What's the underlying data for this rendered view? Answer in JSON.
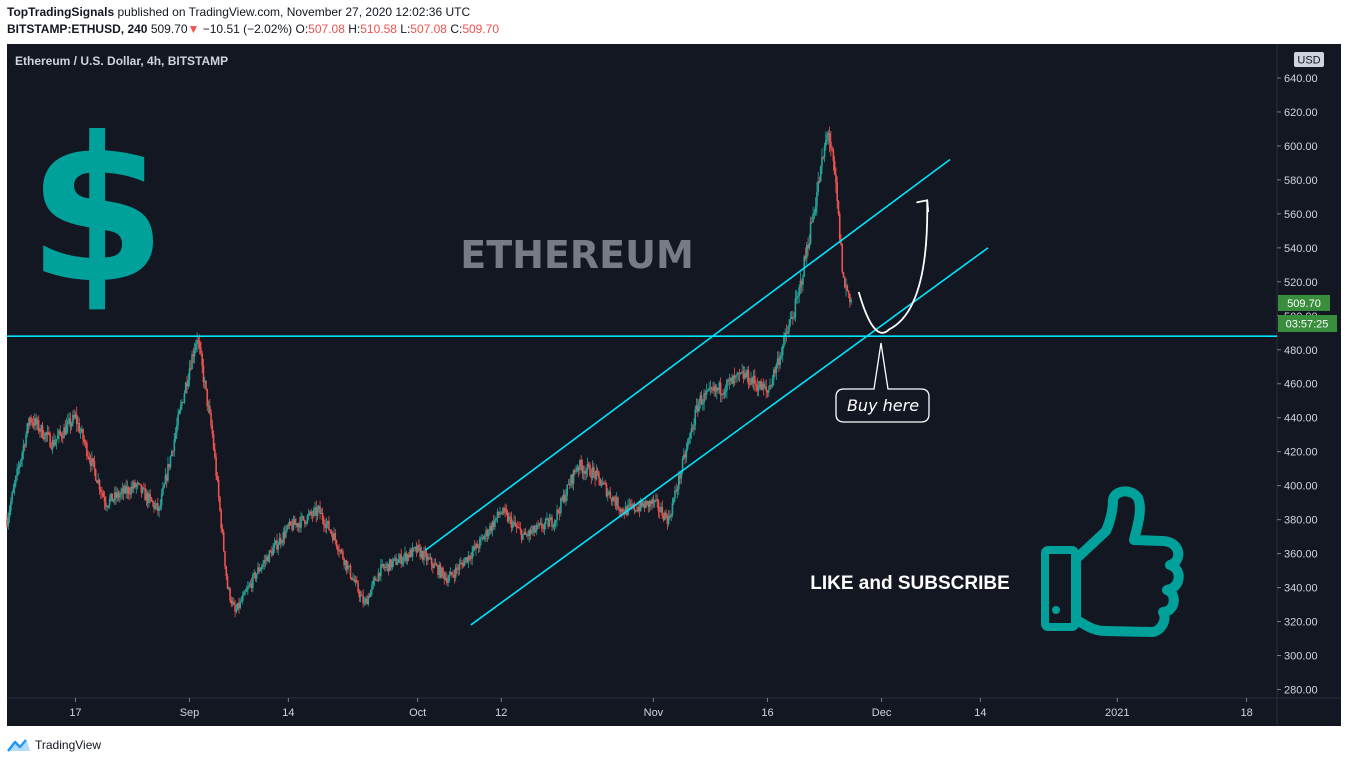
{
  "header": {
    "author": "TopTradingSignals",
    "published_text": "published on TradingView.com, November 27, 2020 12:02:36 UTC",
    "symbol": "BITSTAMP:ETHUSD, 240",
    "last": "509.70",
    "change_arrow": "▼",
    "change": "−10.51 (−2.02%)",
    "o_label": "O:",
    "o_value": "507.08",
    "h_label": "H:",
    "h_value": "510.58",
    "l_label": "L:",
    "l_value": "507.08",
    "c_label": "C:",
    "c_value": "509.70"
  },
  "chart": {
    "pane_title": "Ethereum / U.S. Dollar, 4h, BITSTAMP",
    "currency_badge": "USD",
    "watermark": "ETHEREUM",
    "last_price_label": "509.70",
    "countdown_label": "03:57:25",
    "callout_text": "Buy here",
    "promo_text": "LIKE and SUBSCRIBE",
    "dollar_icon": "dollar-sign-icon",
    "thumb_icon": "thumbs-up-icon",
    "accent_color": "#00a19a",
    "line_color": "#00e5ff",
    "up_color": "#26a69a",
    "down_color": "#ef5350"
  },
  "chart_data": {
    "type": "candlestick",
    "symbol": "BITSTAMP:ETHUSD",
    "interval": "4h",
    "y_ticks": [
      280,
      300,
      320,
      340,
      360,
      380,
      400,
      420,
      440,
      460,
      480,
      500,
      520,
      540,
      560,
      580,
      600,
      620,
      640
    ],
    "y_tick_labels": [
      "280.00",
      "300.00",
      "320.00",
      "340.00",
      "360.00",
      "380.00",
      "400.00",
      "420.00",
      "440.00",
      "460.00",
      "480.00",
      "500.00",
      "520.00",
      "540.00",
      "560.00",
      "580.00",
      "600.00",
      "620.00",
      "640.00"
    ],
    "ylim": [
      275,
      660
    ],
    "x_tick_labels": [
      "17",
      "Sep",
      "14",
      "Oct",
      "12",
      "Nov",
      "16",
      "Dec",
      "14",
      "2021",
      "18"
    ],
    "x_tick_dates": [
      "2020-08-17",
      "2020-09-01",
      "2020-09-14",
      "2020-10-01",
      "2020-10-12",
      "2020-11-01",
      "2020-11-16",
      "2020-12-01",
      "2020-12-14",
      "2021-01-01",
      "2021-01-18"
    ],
    "xlim": [
      "2020-08-08",
      "2021-01-22"
    ],
    "price_path": [
      [
        "2020-08-08",
        380
      ],
      [
        "2020-08-11",
        440
      ],
      [
        "2020-08-14",
        425
      ],
      [
        "2020-08-17",
        440
      ],
      [
        "2020-08-21",
        390
      ],
      [
        "2020-08-25",
        400
      ],
      [
        "2020-08-28",
        385
      ],
      [
        "2020-09-01",
        470
      ],
      [
        "2020-09-02",
        488
      ],
      [
        "2020-09-04",
        430
      ],
      [
        "2020-09-06",
        340
      ],
      [
        "2020-09-07",
        325
      ],
      [
        "2020-09-10",
        350
      ],
      [
        "2020-09-14",
        375
      ],
      [
        "2020-09-18",
        385
      ],
      [
        "2020-09-20",
        370
      ],
      [
        "2020-09-24",
        330
      ],
      [
        "2020-09-26",
        350
      ],
      [
        "2020-09-30",
        360
      ],
      [
        "2020-10-01",
        362
      ],
      [
        "2020-10-05",
        345
      ],
      [
        "2020-10-09",
        365
      ],
      [
        "2020-10-12",
        385
      ],
      [
        "2020-10-15",
        370
      ],
      [
        "2020-10-19",
        380
      ],
      [
        "2020-10-22",
        412
      ],
      [
        "2020-10-24",
        408
      ],
      [
        "2020-10-28",
        385
      ],
      [
        "2020-11-01",
        390
      ],
      [
        "2020-11-03",
        380
      ],
      [
        "2020-11-07",
        450
      ],
      [
        "2020-11-11",
        460
      ],
      [
        "2020-11-13",
        465
      ],
      [
        "2020-11-16",
        455
      ],
      [
        "2020-11-18",
        482
      ],
      [
        "2020-11-20",
        510
      ],
      [
        "2020-11-22",
        560
      ],
      [
        "2020-11-24",
        610
      ],
      [
        "2020-11-25",
        575
      ],
      [
        "2020-11-26",
        520
      ],
      [
        "2020-11-27",
        509.7
      ]
    ],
    "series": [
      {
        "name": "ETHUSD",
        "last_value": 509.7
      }
    ],
    "annotations": {
      "horizontal_line": 488,
      "upper_channel": [
        [
          "2020-10-02",
          362
        ],
        [
          "2020-12-10",
          592
        ]
      ],
      "lower_channel": [
        [
          "2020-10-08",
          318
        ],
        [
          "2020-12-15",
          540
        ]
      ],
      "projection_curve": [
        [
          "2020-11-28",
          514
        ],
        [
          "2020-11-30",
          490
        ],
        [
          "2020-12-02",
          492
        ],
        [
          "2020-12-07",
          568
        ]
      ],
      "callout_target": [
        "2020-12-02",
        488
      ]
    }
  }
}
